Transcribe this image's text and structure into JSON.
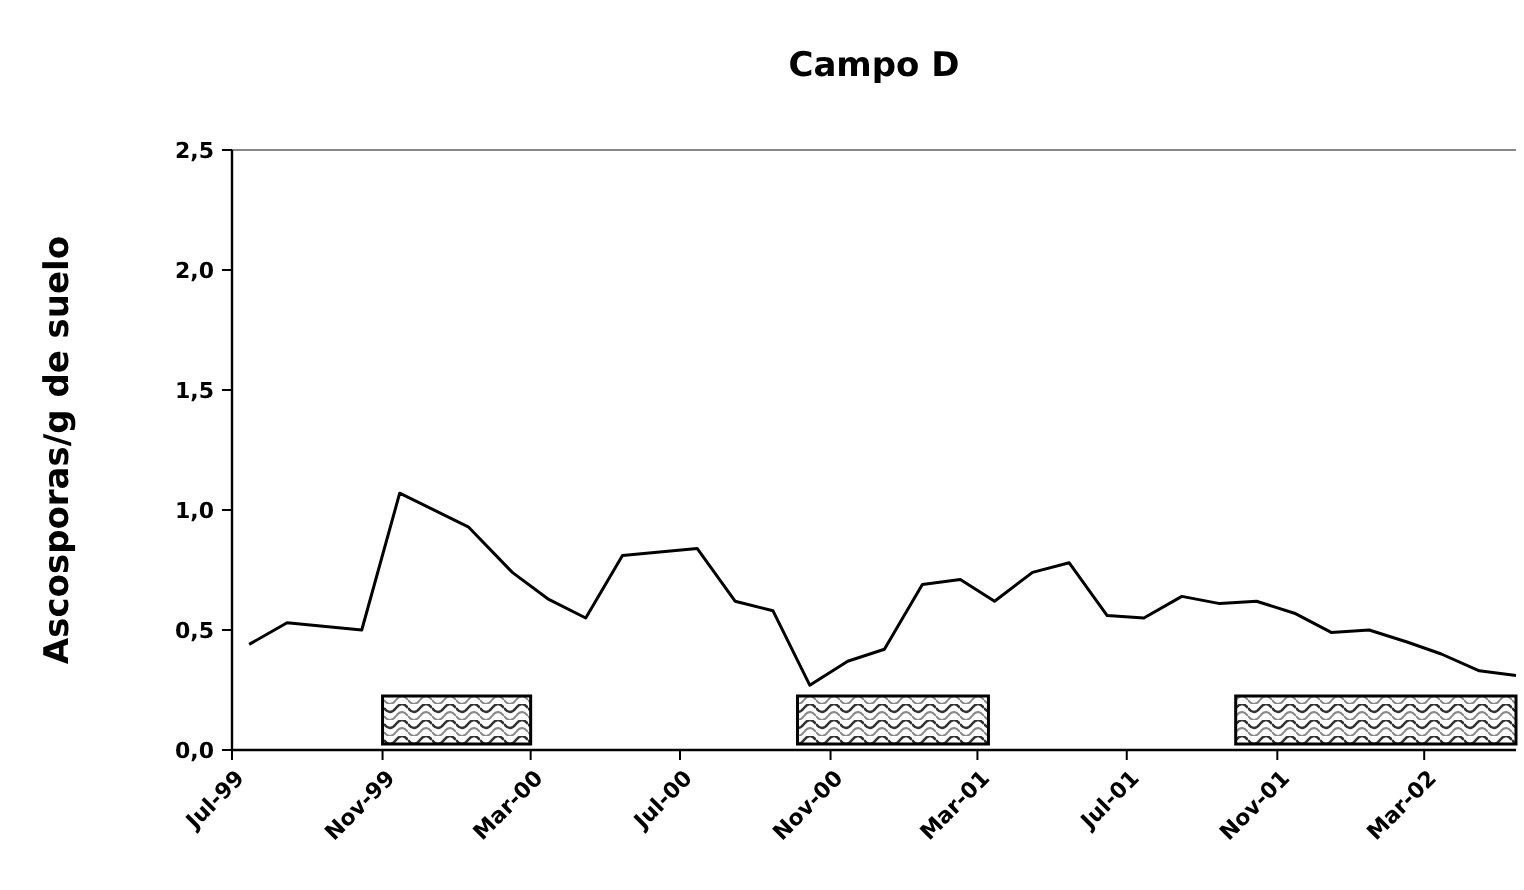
{
  "chart_data": {
    "type": "line",
    "title": "Campo D",
    "ylabel": "Ascosporas/g de suelo",
    "xlim": [
      "1999-07-01",
      "2002-05-15"
    ],
    "ylim": [
      0,
      2.5
    ],
    "xticks": [
      {
        "value": "1999-07",
        "label": "Jul-99"
      },
      {
        "value": "1999-11",
        "label": "Nov-99"
      },
      {
        "value": "2000-03",
        "label": "Mar-00"
      },
      {
        "value": "2000-07",
        "label": "Jul-00"
      },
      {
        "value": "2000-11",
        "label": "Nov-00"
      },
      {
        "value": "2001-03",
        "label": "Mar-01"
      },
      {
        "value": "2001-07",
        "label": "Jul-01"
      },
      {
        "value": "2001-11",
        "label": "Nov-01"
      },
      {
        "value": "2002-03",
        "label": "Mar-02"
      }
    ],
    "yticks": [
      {
        "value": 0,
        "label": "0,0"
      },
      {
        "value": 0.5,
        "label": "0,5"
      },
      {
        "value": 1,
        "label": "1,0"
      },
      {
        "value": 1.5,
        "label": "1,5"
      },
      {
        "value": 2,
        "label": "2,0"
      },
      {
        "value": 2.5,
        "label": "2,5"
      }
    ],
    "x": [
      "1999-07-15",
      "1999-08-15",
      "1999-10-15",
      "1999-11-15",
      "2000-01-10",
      "2000-02-15",
      "2000-03-15",
      "2000-04-15",
      "2000-05-15",
      "2000-07-15",
      "2000-08-15",
      "2000-09-15",
      "2000-10-15",
      "2000-11-15",
      "2000-12-15",
      "2001-01-15",
      "2001-02-15",
      "2001-03-15",
      "2001-04-15",
      "2001-05-15",
      "2001-06-15",
      "2001-07-15",
      "2001-08-15",
      "2001-09-15",
      "2001-10-15",
      "2001-11-15",
      "2001-12-15",
      "2002-01-15",
      "2002-02-15",
      "2002-03-15",
      "2002-04-15",
      "2002-05-15"
    ],
    "series": [
      {
        "color": "#000000",
        "values": [
          0.44,
          0.53,
          0.5,
          1.07,
          0.93,
          0.74,
          0.63,
          0.55,
          0.81,
          0.84,
          0.62,
          0.58,
          0.27,
          0.37,
          0.42,
          0.69,
          0.71,
          0.62,
          0.74,
          0.78,
          0.56,
          0.55,
          0.64,
          0.61,
          0.62,
          0.57,
          0.49,
          0.5,
          0.45,
          0.4,
          0.33,
          0.31
        ]
      }
    ],
    "bands": [
      {
        "axis": "x",
        "from": "1999-11-01",
        "to": "2000-03-01"
      },
      {
        "axis": "x",
        "from": "2000-10-05",
        "to": "2001-03-10"
      },
      {
        "axis": "x",
        "from": "2001-09-28",
        "to": "2002-05-15"
      }
    ],
    "grid": false,
    "marker": "none",
    "line_style": "solid"
  }
}
